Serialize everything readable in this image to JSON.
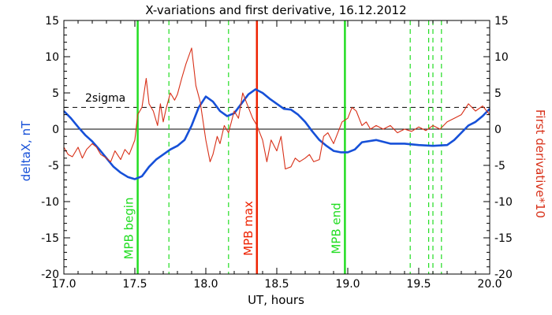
{
  "chart_data": {
    "type": "line",
    "title": "X-variations and first derivative, 16.12.2012",
    "xlabel": "UT, hours",
    "ylabel_left": "deltaX, nT",
    "ylabel_right": "First derivative*10",
    "xlim": [
      17.0,
      20.0
    ],
    "ylim": [
      -20,
      15
    ],
    "x_ticks": [
      "17.0",
      "17.5",
      "18.0",
      "18.5",
      "19.0",
      "19.5",
      "20.0"
    ],
    "y_ticks": [
      "15",
      "10",
      "5",
      "0",
      "-5",
      "-10",
      "-15",
      "-20"
    ],
    "grid": false,
    "colors": {
      "deltaX": "#1650d8",
      "derivative": "#d83018",
      "mpb_marker": "#22dd22",
      "mpb_max": "#ee2200",
      "axes": "#000000"
    },
    "threshold": {
      "label": "2sigma",
      "y": 3.0
    },
    "zero_line_y": 0,
    "markers": [
      {
        "x": 17.52,
        "label": "MPB begin",
        "style": "solid",
        "color": "#22dd22"
      },
      {
        "x": 18.36,
        "label": "MPB max",
        "style": "solid",
        "color": "#ee2200"
      },
      {
        "x": 18.98,
        "label": "MPB end",
        "style": "solid",
        "color": "#22dd22"
      },
      {
        "x": 17.74,
        "label": "",
        "style": "dashed",
        "color": "#22dd22"
      },
      {
        "x": 18.16,
        "label": "",
        "style": "dashed",
        "color": "#22dd22"
      },
      {
        "x": 19.44,
        "label": "",
        "style": "dashed",
        "color": "#22dd22"
      },
      {
        "x": 19.57,
        "label": "",
        "style": "dashed",
        "color": "#22dd22"
      },
      {
        "x": 19.6,
        "label": "",
        "style": "dashed",
        "color": "#22dd22"
      },
      {
        "x": 19.66,
        "label": "",
        "style": "dashed",
        "color": "#22dd22"
      }
    ],
    "series": [
      {
        "key": "deltaX",
        "x": [
          17.0,
          17.05,
          17.1,
          17.15,
          17.2,
          17.25,
          17.3,
          17.35,
          17.4,
          17.45,
          17.5,
          17.55,
          17.6,
          17.65,
          17.7,
          17.75,
          17.8,
          17.85,
          17.9,
          17.95,
          18.0,
          18.05,
          18.1,
          18.15,
          18.2,
          18.25,
          18.3,
          18.35,
          18.4,
          18.45,
          18.5,
          18.55,
          18.6,
          18.65,
          18.7,
          18.75,
          18.8,
          18.85,
          18.9,
          18.95,
          19.0,
          19.05,
          19.1,
          19.2,
          19.3,
          19.4,
          19.5,
          19.6,
          19.7,
          19.75,
          19.8,
          19.85,
          19.9,
          19.95,
          20.0
        ],
        "values": [
          2.5,
          1.5,
          0.3,
          -0.8,
          -1.7,
          -2.8,
          -4.0,
          -5.2,
          -6.0,
          -6.6,
          -6.9,
          -6.5,
          -5.2,
          -4.2,
          -3.5,
          -2.8,
          -2.3,
          -1.5,
          0.5,
          3.0,
          4.5,
          3.8,
          2.5,
          1.8,
          2.2,
          3.5,
          4.8,
          5.5,
          5.0,
          4.2,
          3.5,
          2.8,
          2.7,
          2.0,
          1.0,
          -0.3,
          -1.5,
          -2.3,
          -3.0,
          -3.2,
          -3.2,
          -2.8,
          -1.8,
          -1.5,
          -2.0,
          -2.0,
          -2.2,
          -2.3,
          -2.2,
          -1.5,
          -0.5,
          0.5,
          1.0,
          1.8,
          2.8
        ]
      },
      {
        "key": "derivative",
        "x": [
          17.0,
          17.03,
          17.06,
          17.1,
          17.13,
          17.16,
          17.2,
          17.23,
          17.26,
          17.3,
          17.33,
          17.36,
          17.4,
          17.43,
          17.46,
          17.5,
          17.52,
          17.55,
          17.58,
          17.6,
          17.63,
          17.66,
          17.68,
          17.7,
          17.72,
          17.75,
          17.78,
          17.8,
          17.83,
          17.86,
          17.9,
          17.93,
          17.96,
          18.0,
          18.03,
          18.05,
          18.08,
          18.1,
          18.13,
          18.16,
          18.2,
          18.23,
          18.26,
          18.3,
          18.33,
          18.36,
          18.4,
          18.43,
          18.46,
          18.5,
          18.53,
          18.56,
          18.6,
          18.63,
          18.66,
          18.7,
          18.73,
          18.76,
          18.8,
          18.83,
          18.86,
          18.9,
          18.93,
          18.96,
          19.0,
          19.03,
          19.06,
          19.1,
          19.13,
          19.16,
          19.2,
          19.25,
          19.3,
          19.35,
          19.4,
          19.45,
          19.5,
          19.55,
          19.6,
          19.65,
          19.7,
          19.75,
          19.8,
          19.85,
          19.9,
          19.95,
          20.0
        ],
        "values": [
          -2.5,
          -3.5,
          -3.8,
          -2.5,
          -4.0,
          -2.8,
          -2.0,
          -2.5,
          -3.5,
          -4.0,
          -4.5,
          -3.0,
          -4.2,
          -2.8,
          -3.5,
          -1.5,
          2.0,
          3.0,
          7.0,
          3.5,
          2.5,
          0.5,
          3.5,
          1.0,
          2.8,
          5.0,
          4.0,
          4.8,
          7.0,
          9.0,
          11.2,
          6.0,
          3.8,
          -1.5,
          -4.5,
          -3.5,
          -1.0,
          -2.0,
          0.5,
          -0.5,
          2.5,
          1.5,
          5.0,
          3.0,
          1.5,
          0.5,
          -1.5,
          -4.5,
          -1.5,
          -3.0,
          -1.0,
          -5.5,
          -5.2,
          -4.0,
          -4.5,
          -4.0,
          -3.5,
          -4.5,
          -4.2,
          -1.0,
          -0.5,
          -2.0,
          -0.5,
          1.0,
          1.5,
          3.0,
          2.5,
          0.5,
          1.0,
          0.0,
          0.5,
          0.0,
          0.5,
          -0.5,
          0.0,
          -0.3,
          0.3,
          -0.2,
          0.5,
          0.0,
          1.0,
          1.5,
          2.0,
          3.5,
          2.5,
          3.2,
          2.0
        ]
      }
    ]
  }
}
